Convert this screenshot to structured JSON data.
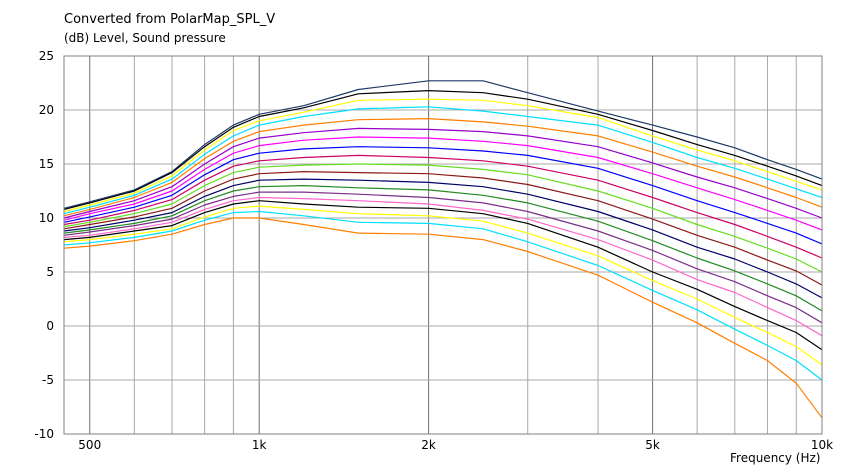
{
  "chart_data": {
    "type": "line",
    "title": "Converted from PolarMap_SPL_V",
    "ylabel": "(dB)  Level, Sound pressure",
    "xlabel": "Frequency  (Hz)",
    "xscale": "log",
    "xlim": [
      450,
      10000
    ],
    "ylim": [
      -10,
      25
    ],
    "grid": true,
    "x_tick_labels": [
      {
        "value": 500,
        "label": "500"
      },
      {
        "value": 1000,
        "label": "1k"
      },
      {
        "value": 2000,
        "label": "2k"
      },
      {
        "value": 5000,
        "label": "5k"
      },
      {
        "value": 10000,
        "label": "10k"
      }
    ],
    "y_ticks": [
      -10,
      -5,
      0,
      5,
      10,
      15,
      20,
      25
    ],
    "x": [
      450,
      500,
      600,
      700,
      800,
      900,
      1000,
      1200,
      1500,
      2000,
      2500,
      3000,
      4000,
      5000,
      6000,
      7000,
      8000,
      9000,
      10000
    ],
    "series": [
      {
        "color": "#1f3a68",
        "values": [
          10.9,
          11.5,
          12.6,
          14.3,
          16.8,
          18.6,
          19.6,
          20.4,
          21.9,
          22.7,
          22.7,
          21.6,
          19.9,
          18.6,
          17.5,
          16.5,
          15.4,
          14.5,
          13.6
        ]
      },
      {
        "color": "#000000",
        "values": [
          10.8,
          11.4,
          12.5,
          14.2,
          16.6,
          18.4,
          19.4,
          20.2,
          21.5,
          21.8,
          21.6,
          21.0,
          19.6,
          18.1,
          16.8,
          15.8,
          14.8,
          13.9,
          13.0
        ]
      },
      {
        "color": "#ffff00",
        "values": [
          10.6,
          11.2,
          12.3,
          13.9,
          16.3,
          18.1,
          19.0,
          19.8,
          20.9,
          21.0,
          20.9,
          20.4,
          19.3,
          17.6,
          16.3,
          15.3,
          14.3,
          13.4,
          12.6
        ]
      },
      {
        "color": "#00e0ff",
        "values": [
          10.4,
          11.0,
          12.1,
          13.6,
          15.9,
          17.6,
          18.6,
          19.4,
          20.1,
          20.3,
          19.9,
          19.4,
          18.6,
          17.0,
          15.6,
          14.6,
          13.6,
          12.7,
          11.9
        ]
      },
      {
        "color": "#ff7f00",
        "values": [
          10.2,
          10.8,
          11.9,
          13.3,
          15.5,
          17.1,
          18.0,
          18.6,
          19.1,
          19.2,
          18.9,
          18.5,
          17.6,
          16.1,
          14.8,
          13.8,
          12.8,
          11.9,
          11.0
        ]
      },
      {
        "color": "#9900cc",
        "values": [
          10.0,
          10.6,
          11.6,
          12.9,
          15.0,
          16.6,
          17.4,
          17.9,
          18.3,
          18.2,
          18.0,
          17.6,
          16.6,
          15.1,
          13.8,
          12.8,
          11.8,
          10.9,
          10.0
        ]
      },
      {
        "color": "#ff00ff",
        "values": [
          9.8,
          10.4,
          11.3,
          12.5,
          14.5,
          16.0,
          16.7,
          17.2,
          17.5,
          17.4,
          17.1,
          16.7,
          15.6,
          14.1,
          12.8,
          11.7,
          10.7,
          9.8,
          8.9
        ]
      },
      {
        "color": "#0000ff",
        "values": [
          9.6,
          10.1,
          11.0,
          12.1,
          14.0,
          15.4,
          16.0,
          16.4,
          16.6,
          16.5,
          16.2,
          15.8,
          14.6,
          13.0,
          11.6,
          10.5,
          9.5,
          8.6,
          7.6
        ]
      },
      {
        "color": "#cc0066",
        "values": [
          9.4,
          9.8,
          10.7,
          11.7,
          13.5,
          14.8,
          15.3,
          15.6,
          15.8,
          15.6,
          15.3,
          14.8,
          13.5,
          11.9,
          10.5,
          9.4,
          8.3,
          7.3,
          6.3
        ]
      },
      {
        "color": "#66dd22",
        "values": [
          9.2,
          9.6,
          10.4,
          11.3,
          13.0,
          14.2,
          14.7,
          14.9,
          15.0,
          14.9,
          14.5,
          14.0,
          12.5,
          10.9,
          9.4,
          8.3,
          7.2,
          6.2,
          5.0
        ]
      },
      {
        "color": "#8b1a1a",
        "values": [
          9.0,
          9.4,
          10.1,
          10.9,
          12.5,
          13.6,
          14.1,
          14.3,
          14.2,
          14.1,
          13.7,
          13.1,
          11.6,
          9.9,
          8.4,
          7.3,
          6.1,
          5.1,
          3.8
        ]
      },
      {
        "color": "#000066",
        "values": [
          8.8,
          9.1,
          9.8,
          10.5,
          12.0,
          13.0,
          13.5,
          13.6,
          13.5,
          13.3,
          12.9,
          12.2,
          10.6,
          8.9,
          7.3,
          6.2,
          5.0,
          3.9,
          2.6
        ]
      },
      {
        "color": "#228b22",
        "values": [
          8.6,
          8.9,
          9.5,
          10.2,
          11.6,
          12.5,
          12.9,
          13.0,
          12.8,
          12.6,
          12.1,
          11.4,
          9.7,
          7.9,
          6.3,
          5.1,
          3.9,
          2.8,
          1.4
        ]
      },
      {
        "color": "#7a2e8a",
        "values": [
          8.4,
          8.7,
          9.3,
          9.9,
          11.2,
          12.0,
          12.4,
          12.4,
          12.2,
          11.9,
          11.4,
          10.6,
          8.8,
          7.0,
          5.3,
          4.1,
          2.8,
          1.7,
          0.3
        ]
      },
      {
        "color": "#ff66cc",
        "values": [
          8.2,
          8.4,
          9.0,
          9.6,
          10.8,
          11.6,
          11.9,
          11.8,
          11.6,
          11.3,
          10.7,
          9.9,
          8.0,
          6.1,
          4.3,
          3.1,
          1.7,
          0.5,
          -0.9
        ]
      },
      {
        "color": "#000000",
        "values": [
          8.0,
          8.2,
          8.8,
          9.3,
          10.5,
          11.3,
          11.6,
          11.3,
          11.0,
          10.9,
          10.4,
          9.5,
          7.3,
          5.0,
          3.4,
          1.8,
          0.5,
          -0.6,
          -2.2
        ]
      },
      {
        "color": "#ffff00",
        "values": [
          7.8,
          8.0,
          8.5,
          9.0,
          10.1,
          10.9,
          11.1,
          10.8,
          10.4,
          10.2,
          9.7,
          8.6,
          6.5,
          4.2,
          2.5,
          0.8,
          -0.6,
          -1.9,
          -3.6
        ]
      },
      {
        "color": "#00e0ff",
        "values": [
          7.5,
          7.7,
          8.2,
          8.8,
          9.8,
          10.5,
          10.6,
          10.2,
          9.6,
          9.5,
          9.0,
          7.8,
          5.6,
          3.3,
          1.5,
          -0.3,
          -1.8,
          -3.2,
          -5.0
        ]
      },
      {
        "color": "#ff7f00",
        "values": [
          7.2,
          7.4,
          7.9,
          8.5,
          9.4,
          10.0,
          10.0,
          9.4,
          8.6,
          8.5,
          8.0,
          6.9,
          4.7,
          2.2,
          0.3,
          -1.6,
          -3.2,
          -5.3,
          -8.5
        ]
      }
    ]
  }
}
